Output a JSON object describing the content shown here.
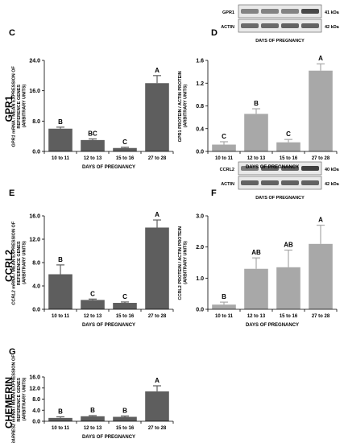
{
  "row_labels": [
    "GPR1",
    "CCRL2",
    "CHEMERIN"
  ],
  "blot_common": {
    "label": "ACTIN",
    "kda": "42 kDa",
    "xlabel": "DAYS OF PREGNANCY"
  },
  "blots": [
    {
      "panel": "D",
      "target": "GPR1",
      "kda": "41 kDa",
      "target_intensity": [
        0.55,
        0.55,
        0.55,
        0.9
      ],
      "actin_intensity": [
        0.7,
        0.7,
        0.75,
        0.75
      ]
    },
    {
      "panel": "F",
      "target": "CCRL2",
      "kda": "40 kDa",
      "target_intensity": [
        0.6,
        0.75,
        0.75,
        0.95
      ],
      "actin_intensity": [
        0.75,
        0.75,
        0.75,
        0.75
      ]
    }
  ],
  "chart_data": [
    {
      "panel": "C",
      "type": "bar",
      "ylabel_italic": "GPR1",
      "ylabel": " mRNA / MEAN EXPRESSION OF REFERENCE GENES (ARBITRARY UNITS)",
      "xlabel": "DAYS OF PREGNANCY",
      "categories": [
        "10 to 11",
        "12 to 13",
        "15 to 16",
        "27 to 28"
      ],
      "values": [
        6.0,
        3.0,
        0.9,
        18.0
      ],
      "errors": [
        0.4,
        0.3,
        0.2,
        2.0
      ],
      "letters": [
        "B",
        "BC",
        "C",
        "A"
      ],
      "ylim": [
        0,
        24
      ],
      "yticks": [
        0,
        8,
        16,
        24
      ],
      "ytick_labels": [
        "0.0",
        "8.0",
        "16.0",
        "24.0"
      ],
      "color": "#5e5e5e"
    },
    {
      "panel": "D",
      "type": "bar",
      "ylabel": "GPR1 PROTEIN / ACTIN PROTEIN (ARBITRARY UNITS)",
      "xlabel": "DAYS OF PREGNANCY",
      "categories": [
        "10 to 11",
        "12 to 13",
        "15 to 16",
        "27 to 28"
      ],
      "values": [
        0.12,
        0.66,
        0.16,
        1.42
      ],
      "errors": [
        0.05,
        0.09,
        0.05,
        0.12
      ],
      "letters": [
        "C",
        "B",
        "C",
        "A"
      ],
      "ylim": [
        0,
        1.6
      ],
      "yticks": [
        0,
        0.4,
        0.8,
        1.2,
        1.6
      ],
      "ytick_labels": [
        "0.0",
        "0.4",
        "0.8",
        "1.2",
        "1.6"
      ],
      "color": "#a8a8a8"
    },
    {
      "panel": "E",
      "type": "bar",
      "ylabel_italic": "CCRL2",
      "ylabel": " mRNA / MEAN EXPRESSION OF REFERENCE GENES (ARBITRARY UNITS)",
      "xlabel": "DAYS OF PREGNANCY",
      "categories": [
        "10 to 11",
        "12 to 13",
        "15 to 16",
        "27 to 28"
      ],
      "values": [
        6.0,
        1.6,
        1.1,
        14.0
      ],
      "errors": [
        1.6,
        0.15,
        0.15,
        1.3
      ],
      "letters": [
        "B",
        "C",
        "C",
        "A"
      ],
      "ylim": [
        0,
        16
      ],
      "yticks": [
        0,
        4,
        8,
        12,
        16
      ],
      "ytick_labels": [
        "0.0",
        "4.0",
        "8.0",
        "12.0",
        "16.0"
      ],
      "color": "#5e5e5e"
    },
    {
      "panel": "F",
      "type": "bar",
      "ylabel": "CCRL2 PROTEIN / ACTIN PROTEIN (ARBITRARY UNITS)",
      "xlabel": "DAYS OF PREGNANCY",
      "categories": [
        "10 to 11",
        "12 to 13",
        "15 to 16",
        "27 to 28"
      ],
      "values": [
        0.15,
        1.3,
        1.35,
        2.1
      ],
      "errors": [
        0.08,
        0.35,
        0.55,
        0.6
      ],
      "letters": [
        "B",
        "AB",
        "AB",
        "A"
      ],
      "ylim": [
        0,
        3.0
      ],
      "yticks": [
        0,
        1,
        2,
        3
      ],
      "ytick_labels": [
        "0.0",
        "1.0",
        "2.0",
        "3.0"
      ],
      "color": "#a8a8a8"
    },
    {
      "panel": "G",
      "type": "bar",
      "ylabel_italic": "RARRES2",
      "ylabel": " mRNA / MEAN EXPRESSION OF REFERENCE GENES (ARBITRARY UNITS)",
      "xlabel": "DAYS OF PREGNANCY",
      "categories": [
        "10 to 11",
        "12 to 13",
        "15 to 16",
        "27 to 28"
      ],
      "values": [
        1.2,
        1.8,
        1.6,
        10.8
      ],
      "errors": [
        0.4,
        0.25,
        0.3,
        2.0
      ],
      "letters": [
        "B",
        "B",
        "B",
        "A"
      ],
      "ylim": [
        0,
        16
      ],
      "yticks": [
        0,
        4,
        8,
        12,
        16
      ],
      "ytick_labels": [
        "0.0",
        "4.0",
        "8.0",
        "12.0",
        "16.0"
      ],
      "color": "#5e5e5e"
    }
  ]
}
